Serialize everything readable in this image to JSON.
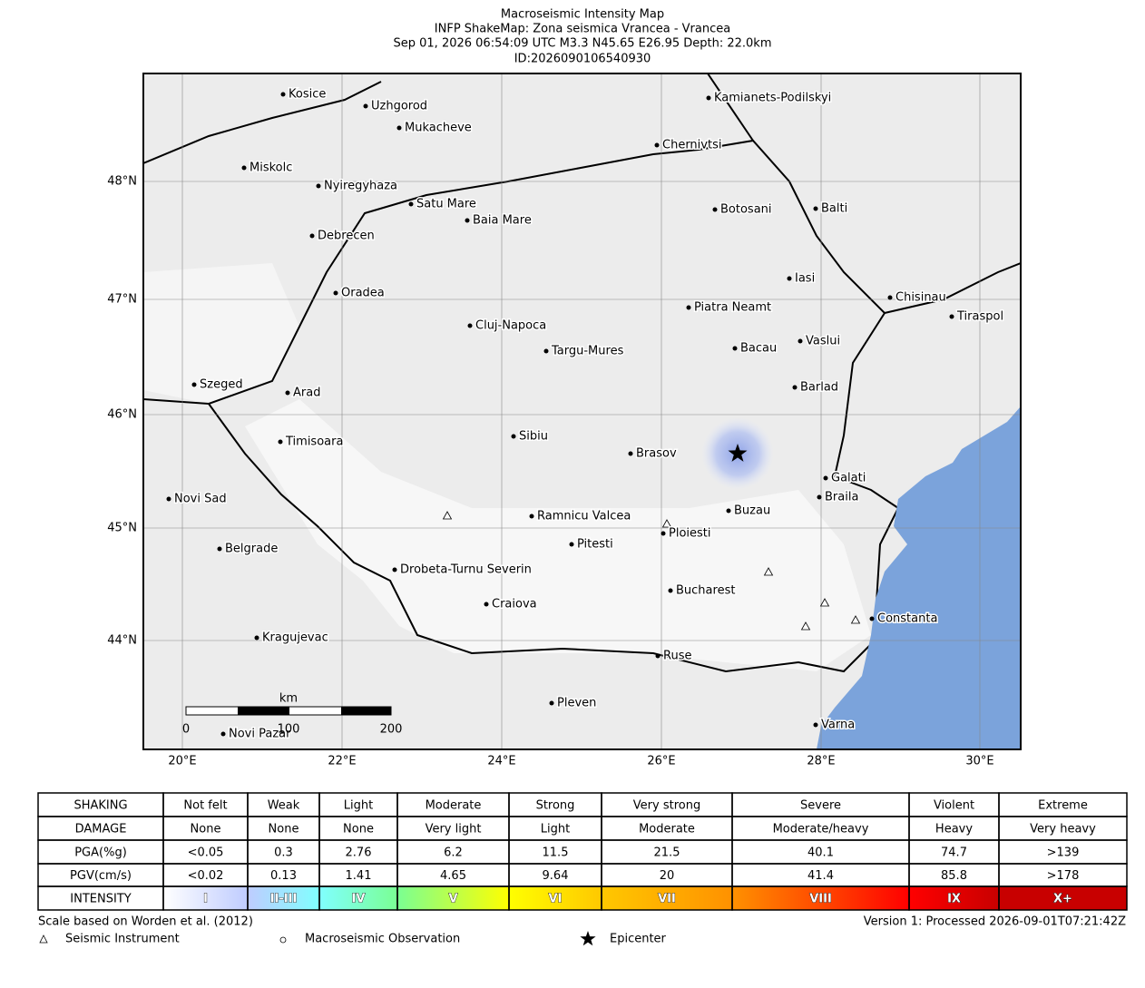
{
  "header": {
    "lines": [
      "Macroseismic Intensity Map",
      "INFP ShakeMap: Zona seismica Vrancea - Vrancea",
      "Sep 01, 2026 06:54:09 UTC M3.3 N45.65 E26.95 Depth: 22.0km",
      "ID:2026090106540930"
    ]
  },
  "map": {
    "lat_labels": [
      "48°N",
      "47°N",
      "46°N",
      "45°N",
      "44°N"
    ],
    "lon_labels": [
      "20°E",
      "22°E",
      "24°E",
      "26°E",
      "28°E",
      "30°E"
    ],
    "cities": [
      "Kosice",
      "Uzhgorod",
      "Mukacheve",
      "Kamianets-Podilskyi",
      "Chernivtsi",
      "Miskolc",
      "Nyiregyhaza",
      "Satu Mare",
      "Baia Mare",
      "Botosani",
      "Balti",
      "Debrecen",
      "Iasi",
      "Oradea",
      "Chisinau",
      "Piatra Neamt",
      "Tiraspol",
      "Cluj-Napoca",
      "Bacau",
      "Vaslui",
      "Targu-Mures",
      "Szeged",
      "Arad",
      "Barlad",
      "Sibiu",
      "Timisoara",
      "Brasov",
      "Galati",
      "Braila",
      "Novi Sad",
      "Buzau",
      "Ramnicu Valcea",
      "Ploiesti",
      "Pitesti",
      "Belgrade",
      "Drobeta-Turnu Severin",
      "Bucharest",
      "Craiova",
      "Constanta",
      "Kragujevac",
      "Ruse",
      "Pleven",
      "Varna",
      "Novi Pazar"
    ],
    "scale_bar": {
      "unit": "km",
      "labels": [
        "0",
        "100",
        "200"
      ]
    }
  },
  "table": {
    "rows": [
      [
        "SHAKING",
        "Not felt",
        "Weak",
        "Light",
        "Moderate",
        "Strong",
        "Very strong",
        "Severe",
        "Violent",
        "Extreme"
      ],
      [
        "DAMAGE",
        "None",
        "None",
        "None",
        "Very light",
        "Light",
        "Moderate",
        "Moderate/heavy",
        "Heavy",
        "Very heavy"
      ],
      [
        "PGA(%g)",
        "<0.05",
        "0.3",
        "2.76",
        "6.2",
        "11.5",
        "21.5",
        "40.1",
        "74.7",
        ">139"
      ],
      [
        "PGV(cm/s)",
        "<0.02",
        "0.13",
        "1.41",
        "4.65",
        "9.64",
        "20",
        "41.4",
        "85.8",
        ">178"
      ],
      [
        "INTENSITY",
        "I",
        "II-III",
        "IV",
        "V",
        "VI",
        "VII",
        "VIII",
        "IX",
        "X+"
      ]
    ],
    "intensity_colors": [
      "#ffffff",
      "#bfccff",
      "#80ffff",
      "#7aff93",
      "#ffff00",
      "#ffc800",
      "#ff9100",
      "#ff0000",
      "#c80000"
    ]
  },
  "footer": {
    "scale_note": "Scale based on Worden et al. (2012)",
    "version": "Version 1: Processed 2026-09-01T07:21:42Z",
    "legend": [
      "Seismic Instrument",
      "Macroseismic Observation",
      "Epicenter"
    ]
  }
}
